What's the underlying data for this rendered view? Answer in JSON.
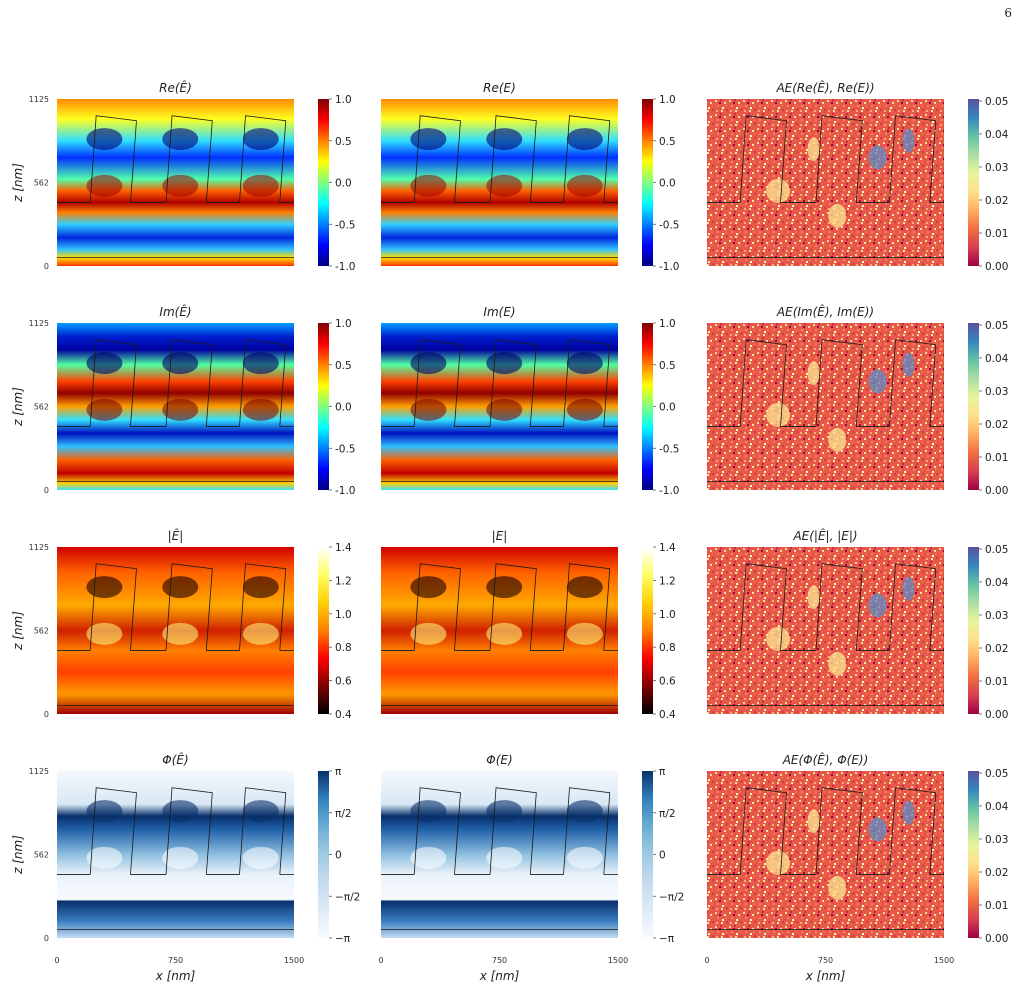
{
  "page_number": "6",
  "figure": {
    "rows": [
      {
        "ylabel": "z [nm]",
        "panels": [
          {
            "title": "Re(Ê)",
            "cmap": "jet",
            "colorbar_ticks": [
              "1.0",
              "0.5",
              "0.0",
              "-0.5",
              "-1.0"
            ]
          },
          {
            "title": "Re(E)",
            "cmap": "jet",
            "colorbar_ticks": [
              "1.0",
              "0.5",
              "0.0",
              "-0.5",
              "-1.0"
            ]
          },
          {
            "title": "AE(Re(Ê), Re(E))",
            "cmap": "spectral",
            "colorbar_ticks": [
              "0.05",
              "0.04",
              "0.03",
              "0.02",
              "0.01",
              "0.00"
            ]
          }
        ]
      },
      {
        "ylabel": "z [nm]",
        "panels": [
          {
            "title": "Im(Ê)",
            "cmap": "jet",
            "colorbar_ticks": [
              "1.0",
              "0.5",
              "0.0",
              "-0.5",
              "-1.0"
            ]
          },
          {
            "title": "Im(E)",
            "cmap": "jet",
            "colorbar_ticks": [
              "1.0",
              "0.5",
              "0.0",
              "-0.5",
              "-1.0"
            ]
          },
          {
            "title": "AE(Im(Ê), Im(E))",
            "cmap": "spectral",
            "colorbar_ticks": [
              "0.05",
              "0.04",
              "0.03",
              "0.02",
              "0.01",
              "0.00"
            ]
          }
        ]
      },
      {
        "ylabel": "z [nm]",
        "panels": [
          {
            "title": "|Ê|",
            "cmap": "hot",
            "colorbar_ticks": [
              "1.4",
              "1.2",
              "1.0",
              "0.8",
              "0.6",
              "0.4"
            ]
          },
          {
            "title": "|E|",
            "cmap": "hot",
            "colorbar_ticks": [
              "1.4",
              "1.2",
              "1.0",
              "0.8",
              "0.6",
              "0.4"
            ]
          },
          {
            "title": "AE(|Ê|, |E|)",
            "cmap": "spectral",
            "colorbar_ticks": [
              "0.05",
              "0.04",
              "0.03",
              "0.02",
              "0.01",
              "0.00"
            ]
          }
        ]
      },
      {
        "ylabel": "z [nm]",
        "panels": [
          {
            "title": "Φ(Ê)",
            "cmap": "blues",
            "colorbar_ticks": [
              "π",
              "π/2",
              "0",
              "−π/2",
              "−π"
            ]
          },
          {
            "title": "Φ(E)",
            "cmap": "blues",
            "colorbar_ticks": [
              "π",
              "π/2",
              "0",
              "−π/2",
              "−π"
            ]
          },
          {
            "title": "AE(Φ(Ê), Φ(E))",
            "cmap": "spectral",
            "colorbar_ticks": [
              "0.05",
              "0.04",
              "0.03",
              "0.02",
              "0.01",
              "0.00"
            ]
          }
        ]
      }
    ],
    "y_ticks": [
      "1125",
      "562",
      "0"
    ],
    "x_ticks": [
      "0",
      "750",
      "1500"
    ],
    "xlabel": "x [nm]"
  }
}
